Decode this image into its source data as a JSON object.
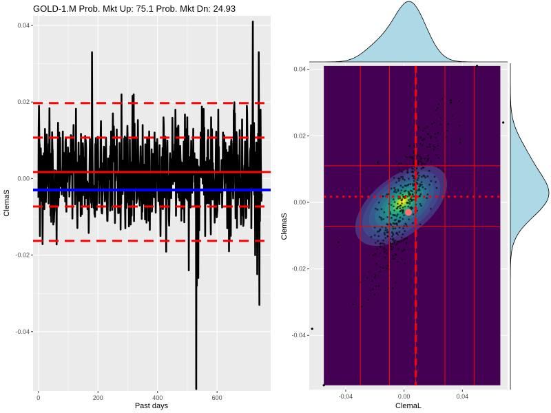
{
  "title": "GOLD-1.M   Prob. Mkt Up:  75.1  Prob. Mkt Dn:  24.93",
  "colors": {
    "panel_bg": "#ebebeb",
    "grid": "#ffffff",
    "series": "#000000",
    "ref_red": "#ff0000",
    "mean_blue": "#0000ff",
    "density_bg": "#440154",
    "marginal_fill": "#add8e6",
    "highlight_point": "#f8766d"
  },
  "chart_data": [
    {
      "type": "line",
      "xlabel": "Past days",
      "ylabel": "ClemaS",
      "xlim": [
        -18,
        780
      ],
      "ylim": [
        -0.0555,
        0.0425
      ],
      "x_ticks": [
        0,
        200,
        400,
        600
      ],
      "y_ticks": [
        -0.04,
        -0.02,
        0.0,
        0.02,
        0.04
      ],
      "x_tick_labels": [
        "0",
        "200",
        "400",
        "600"
      ],
      "y_tick_labels": [
        "-0.04",
        "-0.02",
        "0.00",
        "0.02",
        "0.04"
      ],
      "n_points": 750,
      "series_points": [
        [
          0,
          -0.005
        ],
        [
          2,
          0.019
        ],
        [
          5,
          -0.015
        ],
        [
          10,
          0.003
        ],
        [
          20,
          -0.008
        ],
        [
          35,
          0.009
        ],
        [
          50,
          -0.012
        ],
        [
          70,
          0.012
        ],
        [
          90,
          -0.006
        ],
        [
          110,
          0.011
        ],
        [
          130,
          -0.009
        ],
        [
          150,
          0.008
        ],
        [
          165,
          -0.008
        ],
        [
          180,
          0.033
        ],
        [
          190,
          -0.01
        ],
        [
          210,
          0.015
        ],
        [
          230,
          -0.007
        ],
        [
          250,
          0.017
        ],
        [
          270,
          -0.009
        ],
        [
          290,
          0.011
        ],
        [
          310,
          -0.012
        ],
        [
          320,
          0.022
        ],
        [
          330,
          -0.006
        ],
        [
          350,
          0.014
        ],
        [
          370,
          -0.011
        ],
        [
          390,
          0.012
        ],
        [
          410,
          -0.015
        ],
        [
          420,
          0.016
        ],
        [
          440,
          -0.008
        ],
        [
          460,
          0.018
        ],
        [
          480,
          -0.011
        ],
        [
          500,
          0.016
        ],
        [
          505,
          -0.024
        ],
        [
          520,
          0.013
        ],
        [
          530,
          -0.055
        ],
        [
          545,
          0.012
        ],
        [
          560,
          -0.015
        ],
        [
          580,
          0.016
        ],
        [
          600,
          -0.009
        ],
        [
          620,
          0.012
        ],
        [
          640,
          -0.019
        ],
        [
          660,
          0.017
        ],
        [
          680,
          -0.012
        ],
        [
          700,
          0.019
        ],
        [
          715,
          -0.013
        ],
        [
          720,
          0.041
        ],
        [
          728,
          -0.02
        ],
        [
          735,
          -0.025
        ],
        [
          740,
          0.033
        ],
        [
          742,
          -0.033
        ],
        [
          746,
          0.018
        ],
        [
          750,
          -0.004
        ]
      ],
      "hlines": [
        {
          "y": 0.0197,
          "style": "dashed",
          "color": "red"
        },
        {
          "y": 0.0107,
          "style": "dashed",
          "color": "red"
        },
        {
          "y": 0.0017,
          "style": "solid",
          "color": "red"
        },
        {
          "y": -0.003,
          "style": "solid",
          "color": "blue"
        },
        {
          "y": -0.0073,
          "style": "dashed",
          "color": "red"
        },
        {
          "y": -0.0163,
          "style": "dashed",
          "color": "red"
        }
      ]
    },
    {
      "type": "scatter",
      "xlabel": "ClemaL",
      "ylabel": "ClemaS",
      "xlim": [
        -0.065,
        0.071
      ],
      "ylim": [
        -0.0563,
        0.0418
      ],
      "x_ticks": [
        -0.04,
        0.0,
        0.04
      ],
      "y_ticks": [
        -0.04,
        -0.02,
        0.0,
        0.02,
        0.04
      ],
      "x_tick_labels": [
        "-0.04",
        "0.00",
        "0.04"
      ],
      "y_tick_labels": [
        "-0.04",
        "-0.02",
        "0.00",
        "0.02",
        "0.04"
      ],
      "density_fill_rect": {
        "x": [
          -0.055,
          0.066
        ],
        "y": [
          -0.055,
          0.041
        ]
      },
      "vlines_solid": [
        -0.03,
        -0.01,
        0.008,
        0.028,
        0.048
      ],
      "hlines_solid": [
        0.011,
        -0.0073
      ],
      "hline_dotted": 0.0017,
      "vline_dashed": 0.008,
      "highlight_point": {
        "x": 0.003,
        "y": -0.003
      },
      "outliers": [
        [
          -0.063,
          -0.038
        ],
        [
          -0.055,
          -0.055
        ],
        [
          0.05,
          0.041
        ],
        [
          0.068,
          0.024
        ],
        [
          -0.03,
          -0.024
        ],
        [
          -0.045,
          -0.012
        ],
        [
          -0.018,
          0.012
        ],
        [
          0.032,
          0.03
        ]
      ]
    }
  ]
}
